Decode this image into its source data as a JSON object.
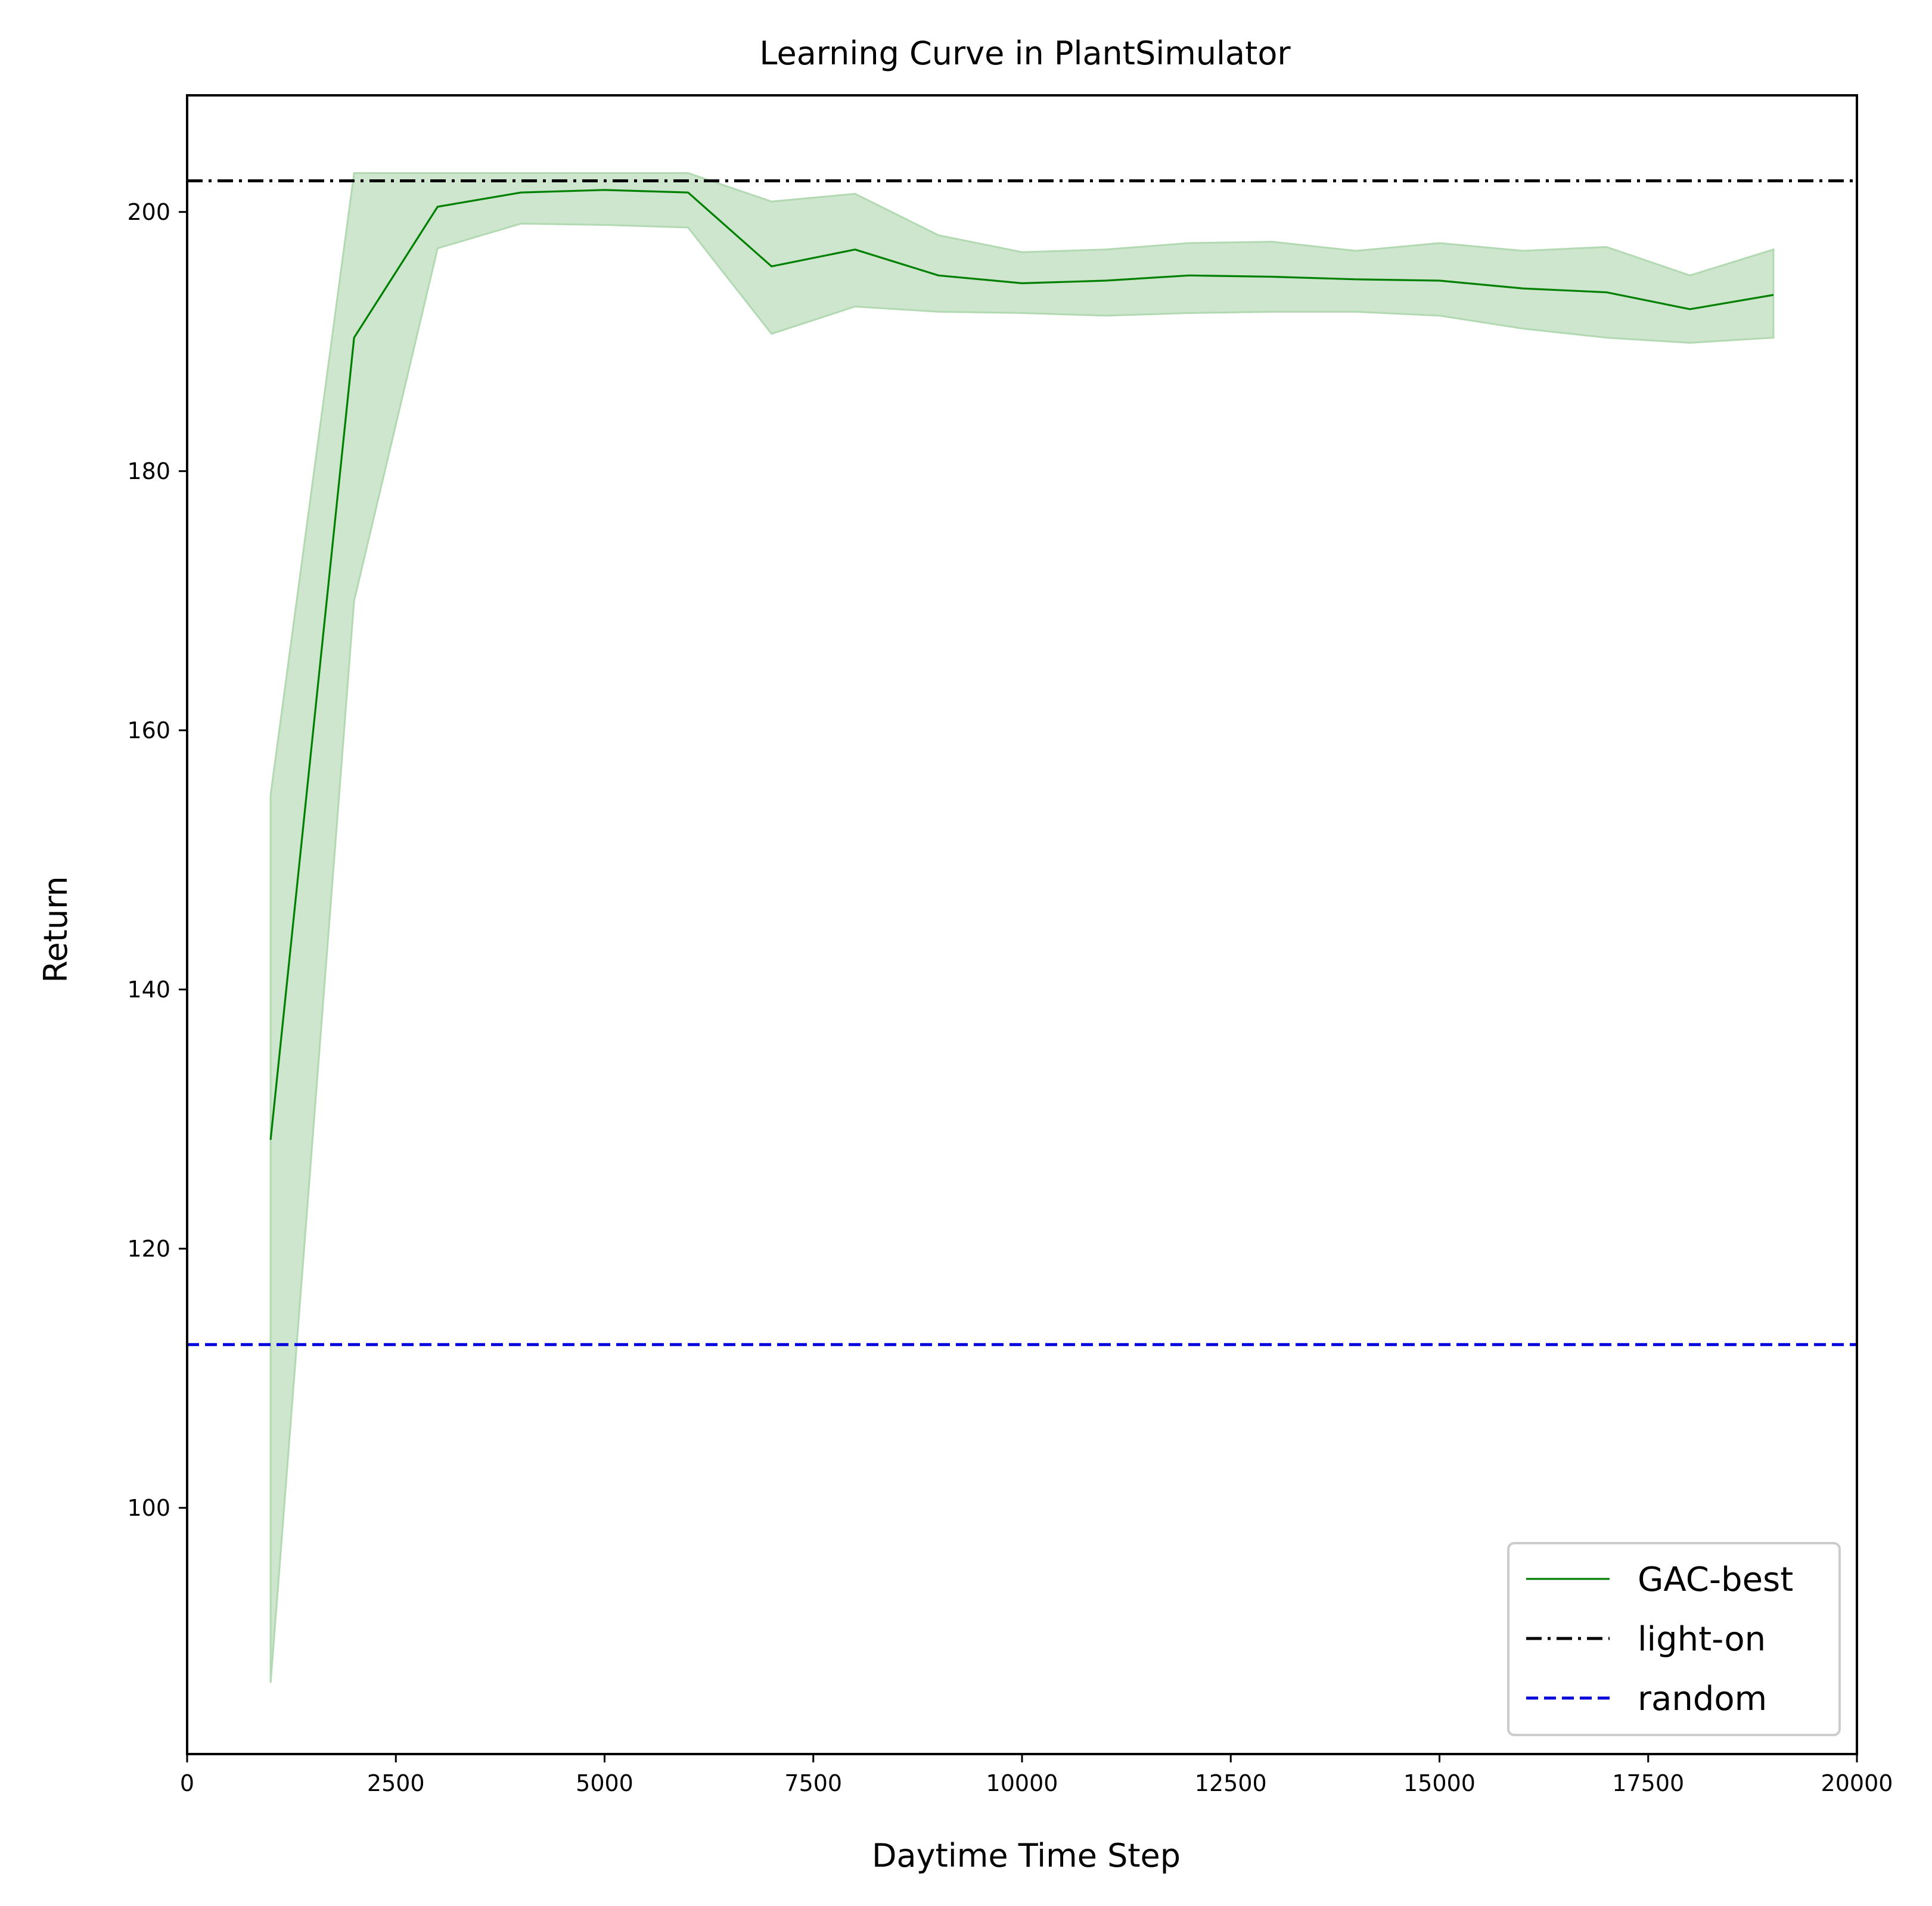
{
  "chart_data": {
    "type": "line",
    "title": "Learning Curve in PlantSimulator",
    "xlabel": "Daytime Time Step",
    "ylabel": "Return",
    "xlim": [
      0,
      20000
    ],
    "ylim": [
      81,
      209
    ],
    "xticks": [
      0,
      2500,
      5000,
      7500,
      10000,
      12500,
      15000,
      17500,
      20000
    ],
    "yticks": [
      100,
      120,
      140,
      160,
      180,
      200
    ],
    "grid": false,
    "legend_position": "lower-right",
    "series": [
      {
        "name": "GAC-best",
        "style": "solid",
        "color": "#008000",
        "band_color": "#b2d9b2",
        "x": [
          1000,
          2000,
          3000,
          4000,
          5000,
          6000,
          7000,
          8000,
          9000,
          10000,
          11000,
          12000,
          13000,
          14000,
          15000,
          16000,
          17000,
          18000,
          19000
        ],
        "values": [
          128.4,
          190.3,
          200.4,
          201.5,
          201.7,
          201.5,
          195.8,
          197.1,
          195.1,
          194.5,
          194.7,
          195.1,
          195.0,
          194.8,
          194.7,
          194.1,
          193.8,
          192.5,
          193.6
        ],
        "lower": [
          86.5,
          170.0,
          197.2,
          199.1,
          199.0,
          198.8,
          190.6,
          192.7,
          192.3,
          192.2,
          192.0,
          192.2,
          192.3,
          192.3,
          192.0,
          191.0,
          190.3,
          189.9,
          190.3
        ],
        "upper": [
          155.0,
          203.0,
          203.0,
          203.0,
          203.0,
          203.0,
          200.8,
          201.4,
          198.2,
          196.9,
          197.1,
          197.6,
          197.7,
          197.0,
          197.6,
          197.0,
          197.3,
          195.1,
          197.1
        ]
      },
      {
        "name": "light-on",
        "style": "dashdot",
        "color": "#000000",
        "constant": 202.4
      },
      {
        "name": "random",
        "style": "dashed",
        "color": "#0000dd",
        "constant": 112.6
      }
    ]
  }
}
